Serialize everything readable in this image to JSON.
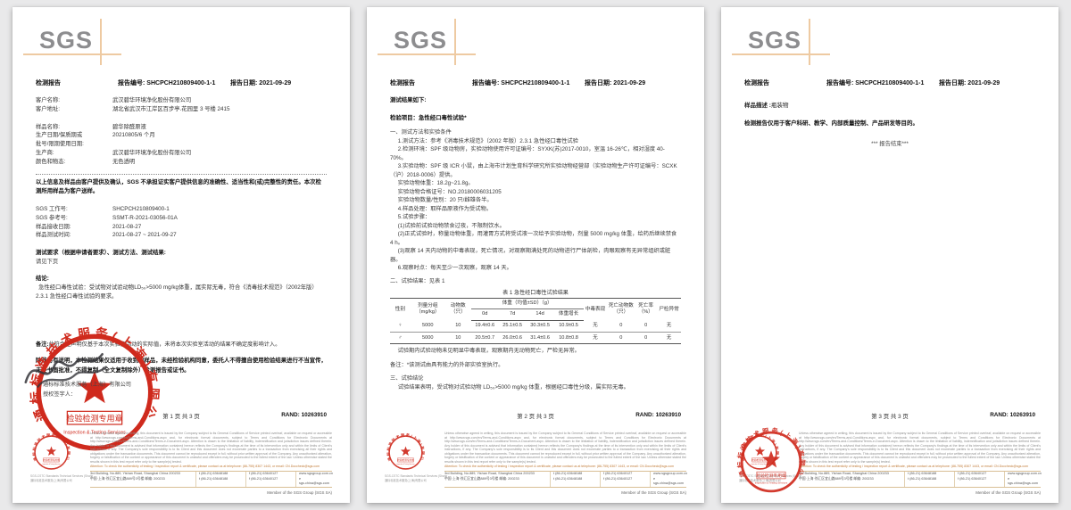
{
  "report": {
    "logo_text": "SGS",
    "header": {
      "title": "检测报告",
      "report_no_label": "报告编号:",
      "report_no": "SHCPCH210809400-1-1",
      "date_label": "报告日期:",
      "date": "2021-09-29"
    },
    "rand_label": "RAND:",
    "rand_value": "10263910"
  },
  "page1": {
    "client_rows": [
      {
        "label": "客户名称:",
        "value": "武汉碧华环境净化股份有限公司"
      },
      {
        "label": "客户地址:",
        "value": "湖北省武汉市江岸区百步亭.花园里 3 号楼 2415"
      }
    ],
    "sample_rows": [
      {
        "label": "样品名称:",
        "value": "碧华除醛原液"
      },
      {
        "label": "生产日期/保质期或",
        "value": "20210805/6 个月"
      },
      {
        "label": "批号/限期使用日期:",
        "value": ""
      },
      {
        "label": "生产商:",
        "value": "武汉碧华环境净化股份有限公司"
      },
      {
        "label": "颜色和物态:",
        "value": "无色透明"
      }
    ],
    "client_notice": "以上信息及样品由客户提供及确认，SGS 不承担证实客户提供信息的准确性、适当性和(或)完整性的责任。本次检测所用样品为客户送样。",
    "sgs_rows": [
      {
        "label": "SGS 工作号:",
        "value": "SHCPCH210809400-1"
      },
      {
        "label": "SGS 参考号:",
        "value": "SSMT-R-2021-03056-01A"
      },
      {
        "label": "样品接收日期:",
        "value": "2021-08-27"
      },
      {
        "label": "样品测试时间:",
        "value": "2021-08-27 ~ 2021-09-27"
      }
    ],
    "test_request_title": "测试要求（根据申请者要求）、测试方法、测试结果:",
    "test_request_value": "请见下页",
    "conclusion_title": "结论:",
    "conclusion_text": "急性经口毒性试验：受试物对试验动物LD₅₀>5000 mg/kg体重，属实际无毒，符合《消毒技术规范》（2002年版）2.3.1 急性经口毒性试验的要求。",
    "remark_label": "备注:",
    "remark_text": "此符合性声明仅基于本次实验室活动的实际值，未将本次实验室活动的结果不确定度影响计入。",
    "usage_notice": "除非另有说明，本检测结果仅适用于收到的样品，未经检验机构同意，委托人不得擅自使用检验结果进行不当宣传，未经书面批准，不得复制（全文复制除外）检测报告或证书。",
    "company_line": "通标标准技术服务（上海）有限公司",
    "signer_label": "授权签字人：",
    "page_no": "第 1 页 共 3 页"
  },
  "page2": {
    "results_intro": "测试结果如下:",
    "item_title": "检验项目：急性经口毒性试验*",
    "section1_title": "一、测试方法和实验条件",
    "method_lines": [
      "1.测试方法：参考《消毒技术规范》（2002 年版）2.3.1 急性经口毒性试验",
      "2.检测环境：SPF 级动物房，实验动物使用许可证编号：SYXK(苏)2017-0010，室温 16-26℃，相对湿度 40-70%。",
      "3.实验动物：SPF 级 ICR 小鼠，由上海市计划生育科学研究所实验动物经营部（实验动物生产许可证编号：SCXK（沪）2018-0006）提供。",
      "实验动物体重：18.2g~21.8g。",
      "实验动物合格证号：NO.20180006031205",
      "实验动物数量/性别：20 只/雌雄各半。",
      "4.样品处理：取样品原液作为受试物。",
      "5.试验步骤：",
      "(1)试验前试验动物禁食过夜，不限制饮水。",
      "(2)正式试验时，称量动物体重，用灌胃方式将受试液一次给予实验动物，剂量 5000 mg/kg 体重，给药后继续禁食 4 h。",
      "(3)观察 14 天内动物的中毒表现，死亡情况，对观察期满处死的动物进行尸体剖检，肉眼观察有无异常组织或脏器。",
      "6.观察时点：每天至少一次观察，观察 14 天。"
    ],
    "section2_title": "二、试验结果：见表 1",
    "table": {
      "caption": "表 1 急性经口毒性试验结果",
      "group_header": "体重（均值±SD）（g）",
      "headers": [
        "性别",
        "剂量分组（mg/kg）",
        "动物数（只）",
        "0d",
        "7d",
        "14d",
        "体重增长",
        "中毒表现",
        "死亡动物数（只）",
        "死亡率（%）",
        "尸检异常"
      ],
      "rows": [
        [
          "♀",
          "5000",
          "10",
          "19.4±0.6",
          "25.1±0.5",
          "30.3±0.5",
          "10.9±0.5",
          "无",
          "0",
          "0",
          "无"
        ],
        [
          "♂",
          "5000",
          "10",
          "20.5±0.7",
          "26.0±0.6",
          "31.4±0.6",
          "10.8±0.8",
          "无",
          "0",
          "0",
          "无"
        ]
      ]
    },
    "table_note": "试验期内试验动物未见明显中毒表现，观察期内无动物死亡，尸检无异常。",
    "remark": "备注：*该测试由具有能力的外部实验室执行。",
    "section3_title": "三、试验结论",
    "conclusion": "试验结果表明，受试物对试验动物 LD₅₀>5000 mg/kg 体重，根据经口毒性分级，属实际无毒。",
    "page_no": "第 2 页 共 3 页"
  },
  "page3": {
    "sample_desc_label": "样品描述 :",
    "sample_desc_value": "瓶装物",
    "purpose_notice": "检测报告仅用于客户科研、教学、内部质量控制、产品研发等目的。",
    "end_mark": "*** 报告结束***",
    "page_no": "第 3 页 共 3 页"
  },
  "stamp": {
    "ring_text": "通标标准技术服务(上海)有限公司",
    "box_text": "检验检测专用章",
    "sub_text": "Inspection & Testing Services"
  },
  "footer": {
    "company_en": "SGS-CSTC Standards Technical Services (Shanghai) Co., Ltd.",
    "company_cn": "通标标准技术服务(上海)有限公司",
    "disclaimer": "Unless otherwise agreed in writing, this document is issued by the Company subject to its General Conditions of Service printed overleaf, available on request or accessible at http://www.sgs.com/en/Terms-and-Conditions.aspx and, for electronic format documents, subject to Terms and Conditions for Electronic Documents at http://www.sgs.com/en/Terms-and-Conditions/Terms-e-Document.aspx. Attention is drawn to the limitation of liability, indemnification and jurisdiction issues defined therein. Any holder of this document is advised that information contained hereon reflects the Company's findings at the time of its intervention only and within the limits of Client's instructions, if any. The Company's sole responsibility is to its Client and this document does not exonerate parties to a transaction from exercising all their rights and obligations under the transaction documents. This document cannot be reproduced except in full, without prior written approval of the Company. Any unauthorized alteration, forgery or falsification of the content or appearance of this document is unlawful and offenders may be prosecuted to the fullest extent of the law. Unless otherwise stated the results shown in this test report refer only to the sample(s) tested.",
    "attention": "Attention: To check the authenticity of testing / inspection report & certificate, please contact us at telephone: (86-755) 8307 1443, or email: CN.Doccheck@sgs.com",
    "address_rows": [
      {
        "addr": "3rd Building, No.889, Yishan Road, Shanghai China 200233",
        "tel": "t (86-21) 63648188",
        "fax": "f (86-21) 63640127",
        "link": "www.sgsgroup.com.cn"
      },
      {
        "addr": "中国·上海·徐汇区宜山路889号3号楼 邮编: 200233",
        "tel": "t (86-21) 63648188",
        "fax": "f (86-21) 63640127",
        "link": "e sgs.china@sgs.com"
      }
    ],
    "member": "Member of the SGS Group (SGS SA)"
  }
}
